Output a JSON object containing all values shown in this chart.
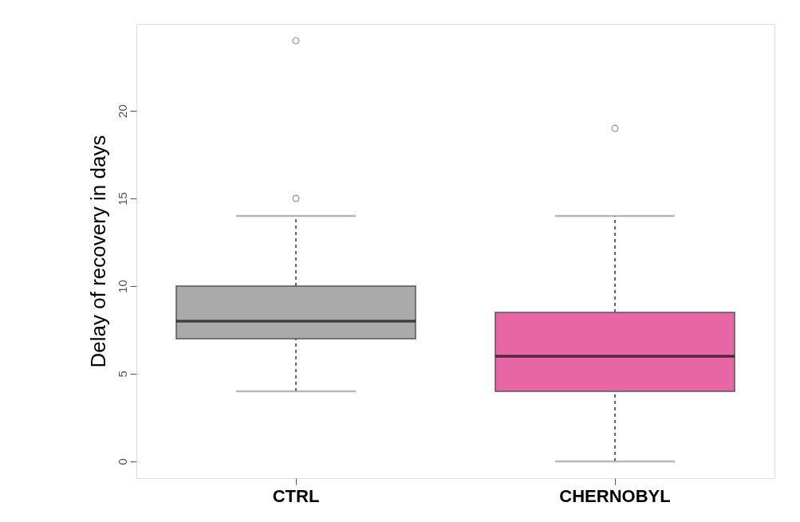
{
  "chart_data": {
    "type": "box",
    "ylabel": "Delay of recovery in days",
    "categories": [
      "CTRL",
      "CHERNOBYL"
    ],
    "boxes": [
      {
        "low": 4,
        "q1": 7,
        "median": 8,
        "q3": 10,
        "high": 14,
        "outliers": [
          15,
          24
        ]
      },
      {
        "low": 0,
        "q1": 4,
        "median": 6,
        "q3": 8.5,
        "high": 14,
        "outliers": [
          19
        ]
      }
    ],
    "colors": [
      "#aaaaaa",
      "#e966a6"
    ],
    "ylim": [
      -0.96,
      24.96
    ],
    "yticks": [
      0,
      5,
      10,
      15,
      20
    ],
    "grid": false
  }
}
